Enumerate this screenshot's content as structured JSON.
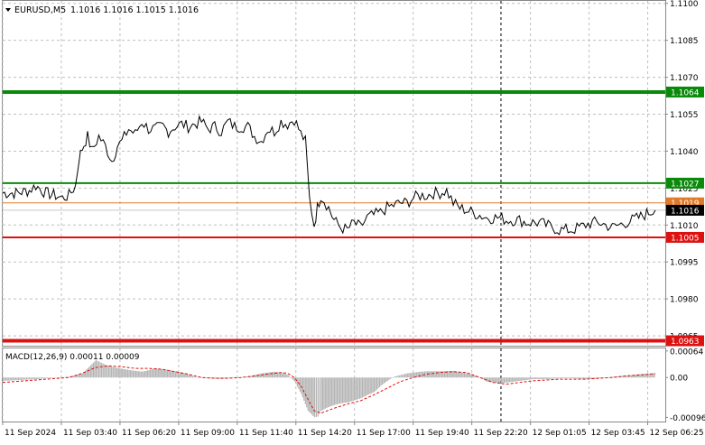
{
  "header": {
    "symbol": "EURUSD,M5",
    "ohlc": "1.1016 1.1016 1.1015 1.1016"
  },
  "colors": {
    "green_level": "#0a8a0a",
    "red_level": "#dd1111",
    "orange_line": "#e07a28",
    "price_line": "#000000",
    "grid": "#c0c0c0",
    "macd_hist": "#b4b4b4",
    "macd_signal": "#dd1111",
    "current_tag_bg": "#000000"
  },
  "chart_data": [
    {
      "type": "line",
      "title": "EURUSD,M5",
      "y_ticks": [
        "1.1100",
        "1.1085",
        "1.1070",
        "1.1055",
        "1.1040",
        "1.1025",
        "1.1010",
        "1.0995",
        "1.0980",
        "1.0965"
      ],
      "ylim": [
        1.0961,
        1.1101
      ],
      "xlim": [
        0,
        100
      ],
      "x_ticks": [
        "11 Sep 2024",
        "11 Sep 03:40",
        "11 Sep 06:20",
        "11 Sep 09:00",
        "11 Sep 11:40",
        "11 Sep 14:20",
        "11 Sep 17:00",
        "11 Sep 19:40",
        "11 Sep 22:20",
        "12 Sep 01:05",
        "12 Sep 03:45",
        "12 Sep 06:25"
      ],
      "x_tick_positions": [
        0,
        8.85,
        17.7,
        26.55,
        35.4,
        44.25,
        53.1,
        61.95,
        70.8,
        79.65,
        88.5,
        97.35
      ],
      "grid": true,
      "vertical_marker_x": 75.2,
      "levels": [
        {
          "price": 1.1064,
          "label": "1.1064",
          "color": "#0a8a0a",
          "style": "thick"
        },
        {
          "price": 1.1027,
          "label": "1.1027",
          "color": "#0a8a0a",
          "style": "normal"
        },
        {
          "price": 1.1019,
          "label": "1.1019",
          "color": "#e07a28",
          "style": "thin"
        },
        {
          "price": 1.1005,
          "label": "1.1005",
          "color": "#dd1111",
          "style": "normal"
        },
        {
          "price": 1.0963,
          "label": "1.0963",
          "color": "#dd1111",
          "style": "thick"
        }
      ],
      "current_price": {
        "price": 1.1016,
        "label": "1.1016"
      },
      "series": [
        {
          "x": [
            0,
            2,
            4,
            5,
            6.5,
            8,
            9,
            10,
            11,
            11.5,
            12,
            12.8,
            13.5,
            14.5,
            15.5,
            16.5,
            17.3,
            18,
            19,
            20,
            21,
            22,
            23,
            24.2,
            25,
            26,
            27,
            28,
            29,
            30,
            31,
            32,
            33,
            34,
            35,
            36,
            37,
            38,
            39,
            40,
            41,
            42,
            43,
            44,
            45,
            45.7,
            46.3,
            47,
            47.5,
            48,
            48.5,
            49.2,
            50,
            51,
            52,
            53,
            54,
            55,
            56,
            57,
            58,
            59,
            60,
            61,
            62,
            63,
            64,
            65,
            66,
            67,
            68,
            69,
            70,
            71,
            72,
            73,
            74,
            75,
            76,
            77,
            78,
            79,
            80,
            81,
            82,
            83,
            84,
            85,
            86,
            87,
            88,
            89,
            90,
            91,
            92,
            93,
            94,
            95,
            96,
            97.5,
            98.5
          ],
          "y": [
            1.1023,
            1.1023,
            1.1024,
            1.1026,
            1.1023,
            1.1022,
            1.1021,
            1.1022,
            1.1026,
            1.1037,
            1.1041,
            1.1046,
            1.104,
            1.1046,
            1.1042,
            1.1036,
            1.1042,
            1.1044,
            1.1049,
            1.1047,
            1.1052,
            1.1049,
            1.1049,
            1.105,
            1.1048,
            1.105,
            1.1051,
            1.105,
            1.1051,
            1.1052,
            1.1049,
            1.105,
            1.1048,
            1.1052,
            1.105,
            1.105,
            1.105,
            1.1046,
            1.1044,
            1.1049,
            1.1048,
            1.1052,
            1.1051,
            1.1053,
            1.1047,
            1.1044,
            1.1021,
            1.101,
            1.1017,
            1.1022,
            1.102,
            1.1017,
            1.1012,
            1.1009,
            1.1008,
            1.1011,
            1.1009,
            1.1013,
            1.1014,
            1.1015,
            1.1017,
            1.1018,
            1.1019,
            1.1019,
            1.1021,
            1.1022,
            1.1022,
            1.1023,
            1.1023,
            1.1024,
            1.1019,
            1.1017,
            1.1016,
            1.1015,
            1.1014,
            1.1013,
            1.1013,
            1.1013,
            1.1012,
            1.1012,
            1.1012,
            1.1011,
            1.1011,
            1.1011,
            1.101,
            1.1009,
            1.1008,
            1.1008,
            1.1008,
            1.1009,
            1.101,
            1.1011,
            1.1011,
            1.101,
            1.1009,
            1.101,
            1.1011,
            1.1012,
            1.1013,
            1.1015,
            1.1016
          ]
        }
      ]
    },
    {
      "type": "bar",
      "title": "MACD(12,26,9) 0.00011 0.00009",
      "y_ticks": [
        "0.00064",
        "0.00",
        "-0.00096"
      ],
      "ylim": [
        -0.00106,
        0.0007
      ],
      "xlim": [
        0,
        100
      ],
      "vertical_marker_x": 75.2,
      "histogram": {
        "x": [
          0,
          5,
          10,
          12,
          14,
          15.5,
          17,
          19,
          21,
          23,
          25,
          27,
          29,
          31,
          33,
          35,
          37,
          39,
          41,
          42,
          43,
          44,
          45,
          46,
          47,
          47.5,
          48,
          49,
          50,
          51,
          52,
          53,
          54,
          55,
          56,
          57,
          58,
          59,
          60,
          61,
          62,
          63,
          64,
          66,
          68,
          70,
          71,
          72,
          73,
          74,
          75,
          76,
          77,
          78,
          79,
          80,
          82,
          84,
          86,
          88,
          90,
          92,
          94,
          96,
          98.5
        ],
        "y": [
          -8e-05,
          -4e-05,
          2e-05,
          0.0001,
          0.00042,
          0.0003,
          0.00024,
          0.00018,
          0.00014,
          0.00022,
          0.00018,
          0.00012,
          2e-05,
          -2e-05,
          -3e-05,
          0.0,
          2e-05,
          0.0001,
          0.00014,
          0.00012,
          6e-05,
          -0.0001,
          -0.0004,
          -0.0008,
          -0.00096,
          -0.00094,
          -0.0008,
          -0.00072,
          -0.00066,
          -0.00062,
          -0.0006,
          -0.00055,
          -0.0005,
          -0.00042,
          -0.00035,
          -0.0002,
          -8e-05,
          2e-05,
          6e-05,
          0.0001,
          0.00012,
          0.00014,
          0.00015,
          0.00015,
          0.00016,
          0.0001,
          6e-05,
          0.0,
          -0.0001,
          -0.00012,
          -0.00014,
          -0.00012,
          -0.0001,
          -8e-05,
          -6e-05,
          -4e-05,
          -4e-05,
          -2e-05,
          -2e-05,
          -4e-05,
          -2e-05,
          2e-05,
          4e-05,
          8e-05,
          0.00011
        ]
      },
      "signal": {
        "x": [
          0,
          5,
          10,
          12,
          14,
          16,
          18,
          20,
          22,
          24,
          26,
          28,
          30,
          32,
          34,
          36,
          38,
          40,
          42,
          43,
          44,
          45,
          46,
          47,
          48,
          49,
          50,
          52,
          54,
          56,
          58,
          60,
          62,
          64,
          66,
          68,
          70,
          72,
          74,
          76,
          78,
          80,
          82,
          84,
          86,
          88,
          90,
          92,
          94,
          96,
          98.5
        ],
        "y": [
          -0.00012,
          -6e-05,
          0.0,
          0.0001,
          0.00024,
          0.00028,
          0.00026,
          0.00022,
          0.00022,
          0.0002,
          0.00014,
          8e-05,
          0.0,
          -2e-05,
          -2e-05,
          0.0,
          4e-05,
          8e-05,
          0.00012,
          0.0001,
          0.0,
          -0.0002,
          -0.0005,
          -0.0008,
          -0.00086,
          -0.0008,
          -0.00074,
          -0.00064,
          -0.00056,
          -0.00042,
          -0.00026,
          -0.0001,
          0.0,
          8e-05,
          0.00012,
          0.00014,
          0.00012,
          0.0,
          -0.00012,
          -0.00016,
          -0.00012,
          -8e-05,
          -6e-05,
          -4e-05,
          -4e-05,
          -4e-05,
          -2e-05,
          0.0,
          4e-05,
          6e-05,
          9e-05
        ]
      }
    }
  ]
}
